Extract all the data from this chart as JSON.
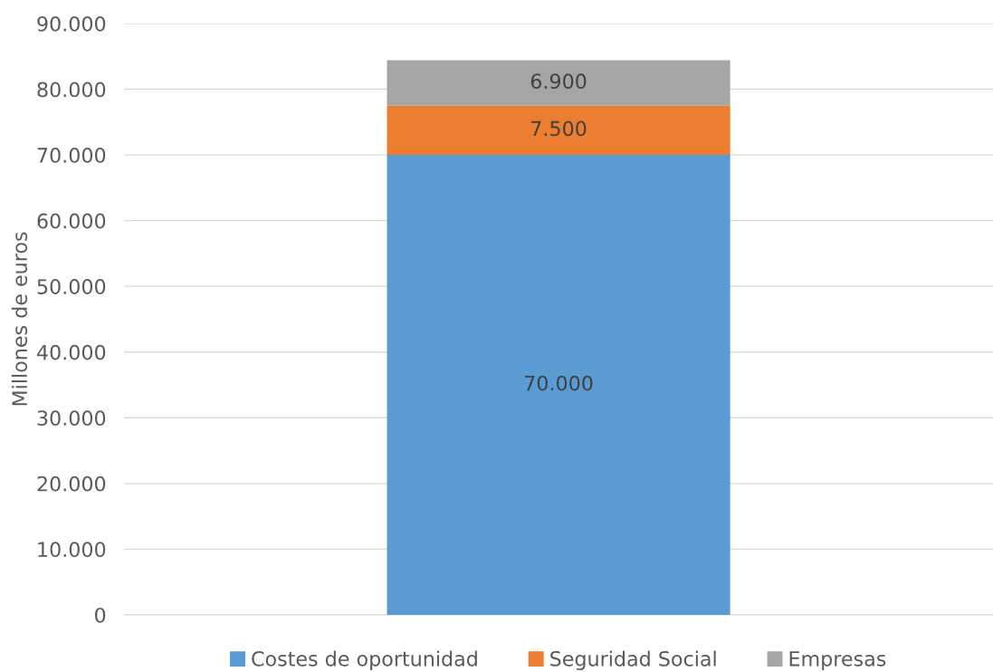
{
  "chart_data": {
    "type": "bar",
    "stacked": true,
    "ylabel": "Millones de euros",
    "categories": [
      null
    ],
    "series": [
      {
        "name": "Costes de oportunidad",
        "color": "#5b9bd5",
        "values": [
          70000
        ],
        "value_labels": [
          "70.000"
        ]
      },
      {
        "name": "Seguridad Social",
        "color": "#ed7d31",
        "values": [
          7500
        ],
        "value_labels": [
          "7.500"
        ]
      },
      {
        "name": "Empresas",
        "color": "#a5a5a5",
        "values": [
          6900
        ],
        "value_labels": [
          "6.900"
        ]
      }
    ],
    "ylim": [
      0,
      90000
    ],
    "yticks": [
      {
        "value": 0,
        "label": "0"
      },
      {
        "value": 10000,
        "label": "10.000"
      },
      {
        "value": 20000,
        "label": "20.000"
      },
      {
        "value": 30000,
        "label": "30.000"
      },
      {
        "value": 40000,
        "label": "40.000"
      },
      {
        "value": 50000,
        "label": "50.000"
      },
      {
        "value": 60000,
        "label": "60.000"
      },
      {
        "value": 70000,
        "label": "70.000"
      },
      {
        "value": 80000,
        "label": "80.000"
      },
      {
        "value": 90000,
        "label": "90.000"
      }
    ],
    "grid": "y",
    "legend": "bottom"
  }
}
